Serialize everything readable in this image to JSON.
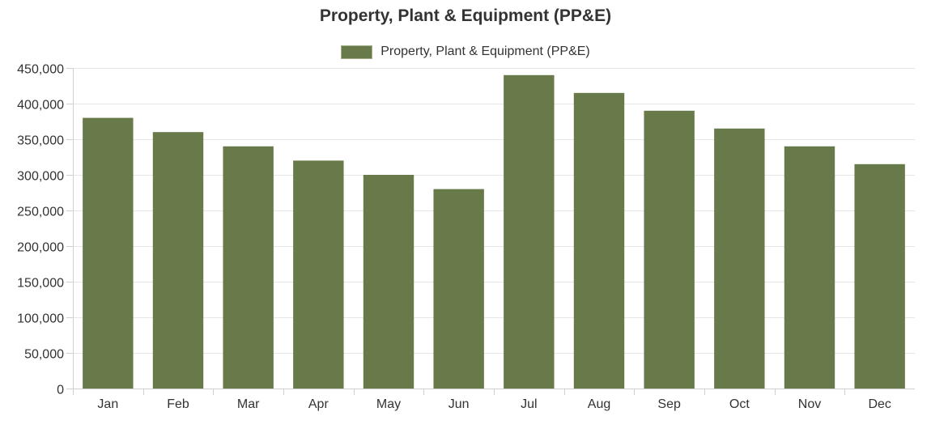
{
  "chart_data": {
    "type": "bar",
    "title": "Property, Plant & Equipment (PP&E)",
    "xlabel": "",
    "ylabel": "",
    "categories": [
      "Jan",
      "Feb",
      "Mar",
      "Apr",
      "May",
      "Jun",
      "Jul",
      "Aug",
      "Sep",
      "Oct",
      "Nov",
      "Dec"
    ],
    "series": [
      {
        "name": "Property, Plant & Equipment (PP&E)",
        "values": [
          380000,
          360000,
          340000,
          320000,
          300000,
          280000,
          440000,
          415000,
          390000,
          365000,
          340000,
          315000
        ],
        "color": "#697a4a"
      }
    ],
    "ylim": [
      0,
      450000
    ],
    "yticks": [
      "0",
      "50,000",
      "100,000",
      "150,000",
      "200,000",
      "250,000",
      "300,000",
      "350,000",
      "400,000",
      "450,000"
    ],
    "grid": true,
    "legend_position": "top-center"
  }
}
